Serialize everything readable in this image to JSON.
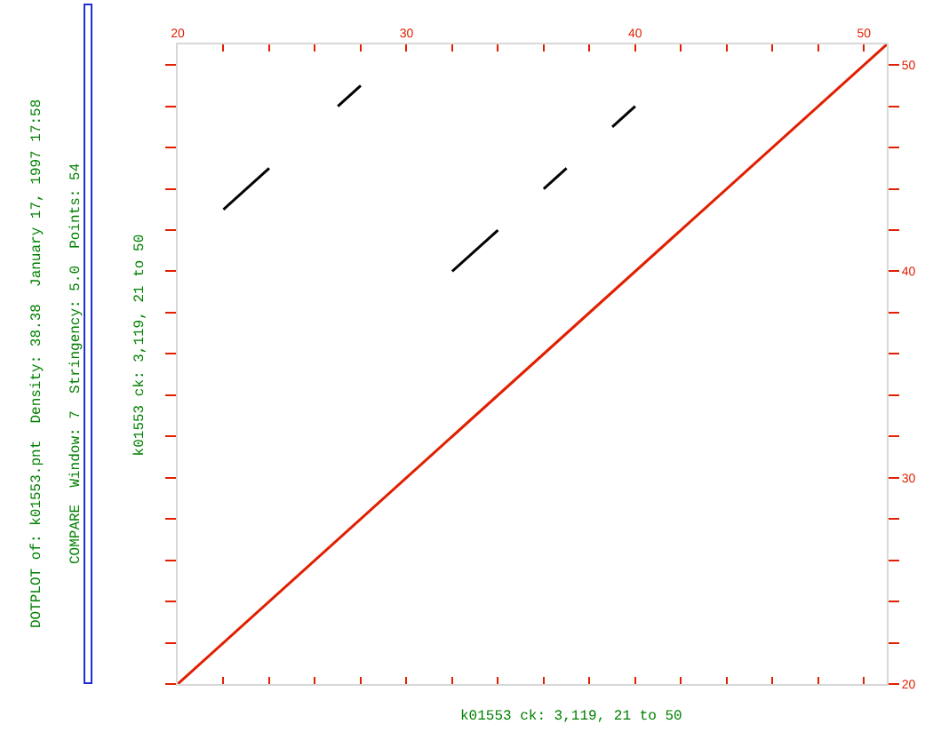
{
  "chart_data": {
    "type": "line",
    "xlabel": "k01553 ck: 3,119, 21 to 50",
    "ylabel": "k01553 ck: 3,119, 21 to 50",
    "annotations": [
      "DOTPLOT of: k01553.pnt  Density: 38.38  January 17, 1997 17:58",
      "COMPARE  Window: 7  Stringency: 5.0  Points: 54"
    ],
    "series": [
      {
        "color": "#e02000",
        "x": [
          20,
          51
        ],
        "values": [
          20,
          51
        ]
      },
      {
        "color": "#000000",
        "x": [
          27,
          28
        ],
        "values": [
          48,
          49
        ]
      },
      {
        "color": "#000000",
        "x": [
          22,
          24
        ],
        "values": [
          43,
          45
        ]
      },
      {
        "color": "#000000",
        "x": [
          32,
          34
        ],
        "values": [
          40,
          42
        ]
      },
      {
        "color": "#000000",
        "x": [
          36,
          37
        ],
        "values": [
          44,
          45
        ]
      },
      {
        "color": "#000000",
        "x": [
          39,
          40
        ],
        "values": [
          47,
          48
        ]
      }
    ],
    "xlim": [
      20,
      51
    ],
    "ylim": [
      20,
      51
    ],
    "xticks": [
      20,
      {
        "value": 22,
        "label": null
      },
      {
        "value": 24,
        "label": null
      },
      {
        "value": 26,
        "label": null
      },
      {
        "value": 28,
        "label": null
      },
      30,
      {
        "value": 32,
        "label": null
      },
      {
        "value": 34,
        "label": null
      },
      {
        "value": 36,
        "label": null
      },
      {
        "value": 38,
        "label": null
      },
      40,
      {
        "value": 42,
        "label": null
      },
      {
        "value": 44,
        "label": null
      },
      {
        "value": 46,
        "label": null
      },
      {
        "value": 48,
        "label": null
      },
      50
    ],
    "yticks": [
      20,
      {
        "value": 22,
        "label": null
      },
      {
        "value": 24,
        "label": null
      },
      {
        "value": 26,
        "label": null
      },
      {
        "value": 28,
        "label": null
      },
      30,
      {
        "value": 32,
        "label": null
      },
      {
        "value": 34,
        "label": null
      },
      {
        "value": 36,
        "label": null
      },
      {
        "value": 38,
        "label": null
      },
      40,
      {
        "value": 42,
        "label": null
      },
      {
        "value": 44,
        "label": null
      },
      {
        "value": 46,
        "label": null
      },
      {
        "value": 48,
        "label": null
      },
      50
    ],
    "marker": "none",
    "line_style": "solid"
  }
}
